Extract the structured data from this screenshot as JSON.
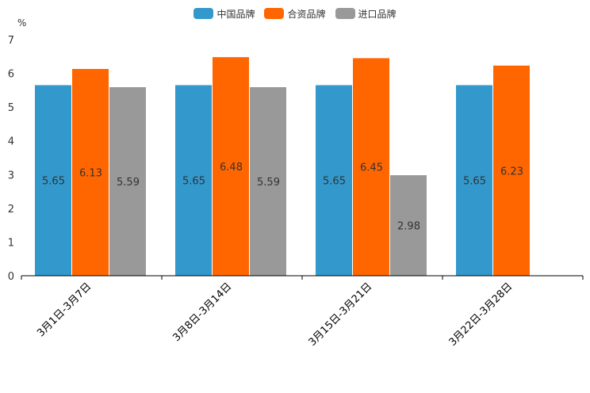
{
  "chart_data": {
    "type": "bar",
    "unit_label": "%",
    "categories": [
      "3月1日-3月7日",
      "3月8日-3月14日",
      "3月15日-3月21日",
      "3月22日-3月28日"
    ],
    "series": [
      {
        "name": "中国品牌",
        "color": "#3399cc",
        "values": [
          5.65,
          5.65,
          5.65,
          5.65
        ]
      },
      {
        "name": "合资品牌",
        "color": "#ff6600",
        "values": [
          6.13,
          6.48,
          6.45,
          6.23
        ]
      },
      {
        "name": "进口品牌",
        "color": "#999999",
        "values": [
          5.59,
          5.59,
          2.98,
          null
        ]
      }
    ],
    "ylim": [
      0,
      7
    ],
    "yticks": [
      0,
      1,
      2,
      3,
      4,
      5,
      6,
      7
    ],
    "legend_position": "top-center"
  }
}
